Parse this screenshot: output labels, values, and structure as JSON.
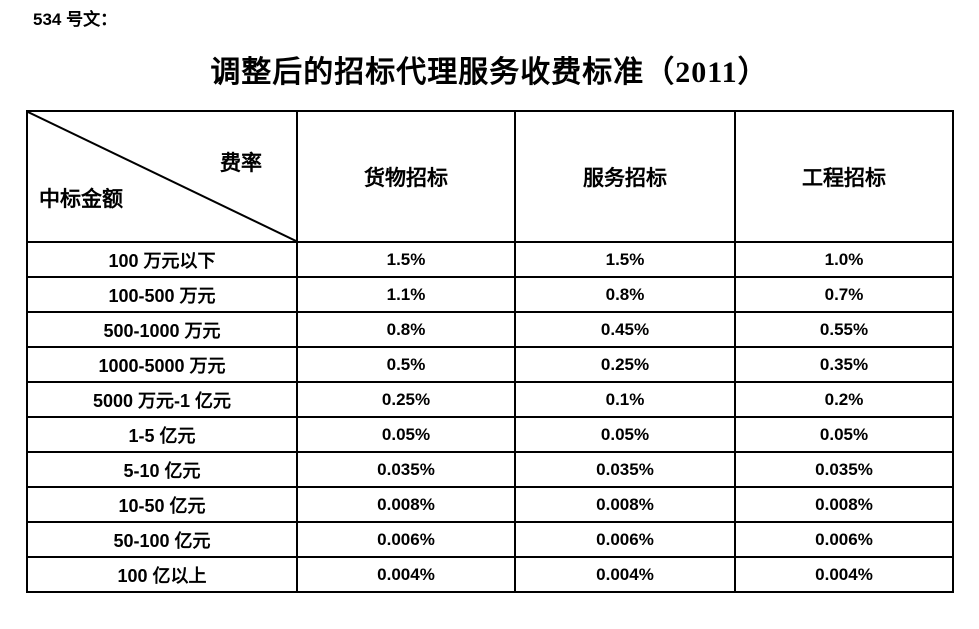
{
  "page": {
    "doc_ref": "534 号文：",
    "title": "调整后的招标代理服务收费标准（2011）"
  },
  "table": {
    "corner": {
      "top_label": "费率",
      "bottom_label": "中标金额"
    },
    "column_headers": [
      "货物招标",
      "服务招标",
      "工程招标"
    ],
    "rows": [
      {
        "label": "100 万元以下",
        "values": [
          "1.5%",
          "1.5%",
          "1.0%"
        ]
      },
      {
        "label": "100-500 万元",
        "values": [
          "1.1%",
          "0.8%",
          "0.7%"
        ]
      },
      {
        "label": "500-1000 万元",
        "values": [
          "0.8%",
          "0.45%",
          "0.55%"
        ]
      },
      {
        "label": "1000-5000 万元",
        "values": [
          "0.5%",
          "0.25%",
          "0.35%"
        ]
      },
      {
        "label": "5000 万元-1 亿元",
        "values": [
          "0.25%",
          "0.1%",
          "0.2%"
        ]
      },
      {
        "label": "1-5 亿元",
        "values": [
          "0.05%",
          "0.05%",
          "0.05%"
        ]
      },
      {
        "label": "5-10 亿元",
        "values": [
          "0.035%",
          "0.035%",
          "0.035%"
        ]
      },
      {
        "label": "10-50 亿元",
        "values": [
          "0.008%",
          "0.008%",
          "0.008%"
        ]
      },
      {
        "label": "50-100 亿元",
        "values": [
          "0.006%",
          "0.006%",
          "0.006%"
        ]
      },
      {
        "label": "100 亿以上",
        "values": [
          "0.004%",
          "0.004%",
          "0.004%"
        ]
      }
    ],
    "colors": {
      "border": "#000000",
      "text": "#000000",
      "background": "#ffffff"
    }
  }
}
